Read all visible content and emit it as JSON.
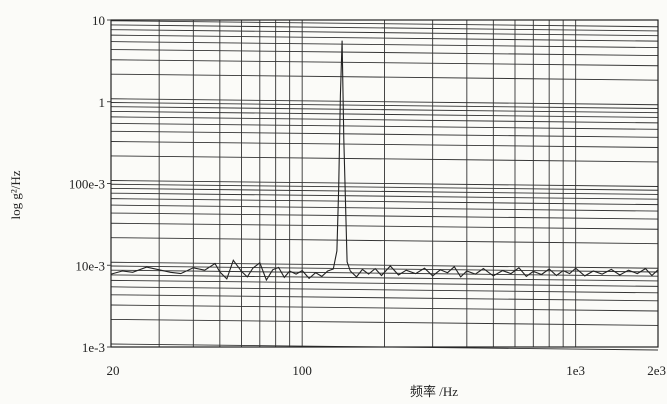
{
  "chart_data": {
    "type": "line",
    "title": "",
    "xlabel": "频率 /Hz",
    "ylabel": "log g²/Hz",
    "xscale": "log",
    "yscale": "log",
    "xlim": [
      20,
      2000
    ],
    "ylim": [
      0.001,
      10
    ],
    "grid": true,
    "x_ticks": [
      "20",
      "100",
      "1e3",
      "2e3"
    ],
    "y_ticks": [
      "10",
      "1",
      "100e-3",
      "10e-3",
      "1e-3"
    ],
    "series": [
      {
        "x": [
          20,
          22,
          24,
          27,
          30,
          33,
          36,
          40,
          44,
          48,
          50,
          53,
          56,
          60,
          63,
          66,
          70,
          74,
          78,
          82,
          86,
          90,
          95,
          100,
          106,
          112,
          118,
          124,
          130,
          134,
          136,
          138,
          140,
          142,
          146,
          150,
          158,
          166,
          175,
          185,
          195,
          210,
          225,
          240,
          260,
          280,
          300,
          320,
          340,
          360,
          380,
          400,
          430,
          460,
          500,
          540,
          580,
          620,
          660,
          700,
          750,
          800,
          850,
          900,
          950,
          1000,
          1080,
          1160,
          1250,
          1350,
          1450,
          1560,
          1680,
          1800,
          1900,
          2000
        ],
        "values": [
          0.0078,
          0.0085,
          0.0082,
          0.0095,
          0.0088,
          0.0082,
          0.0079,
          0.0093,
          0.0087,
          0.0105,
          0.0083,
          0.0068,
          0.0115,
          0.0084,
          0.0072,
          0.0092,
          0.0107,
          0.0066,
          0.0088,
          0.0094,
          0.0071,
          0.0085,
          0.0078,
          0.0086,
          0.0069,
          0.0081,
          0.0073,
          0.0085,
          0.009,
          0.015,
          0.09,
          1.2,
          5.6,
          0.35,
          0.011,
          0.0085,
          0.0072,
          0.0089,
          0.0078,
          0.0091,
          0.0075,
          0.0098,
          0.0076,
          0.0087,
          0.0079,
          0.0092,
          0.0074,
          0.0088,
          0.0081,
          0.0096,
          0.0072,
          0.0085,
          0.0078,
          0.0091,
          0.0074,
          0.0086,
          0.0079,
          0.0093,
          0.0073,
          0.0084,
          0.0077,
          0.009,
          0.0075,
          0.0086,
          0.0079,
          0.0092,
          0.0074,
          0.0085,
          0.0078,
          0.0089,
          0.0076,
          0.0087,
          0.0079,
          0.0091,
          0.0075,
          0.0088
        ]
      }
    ]
  }
}
